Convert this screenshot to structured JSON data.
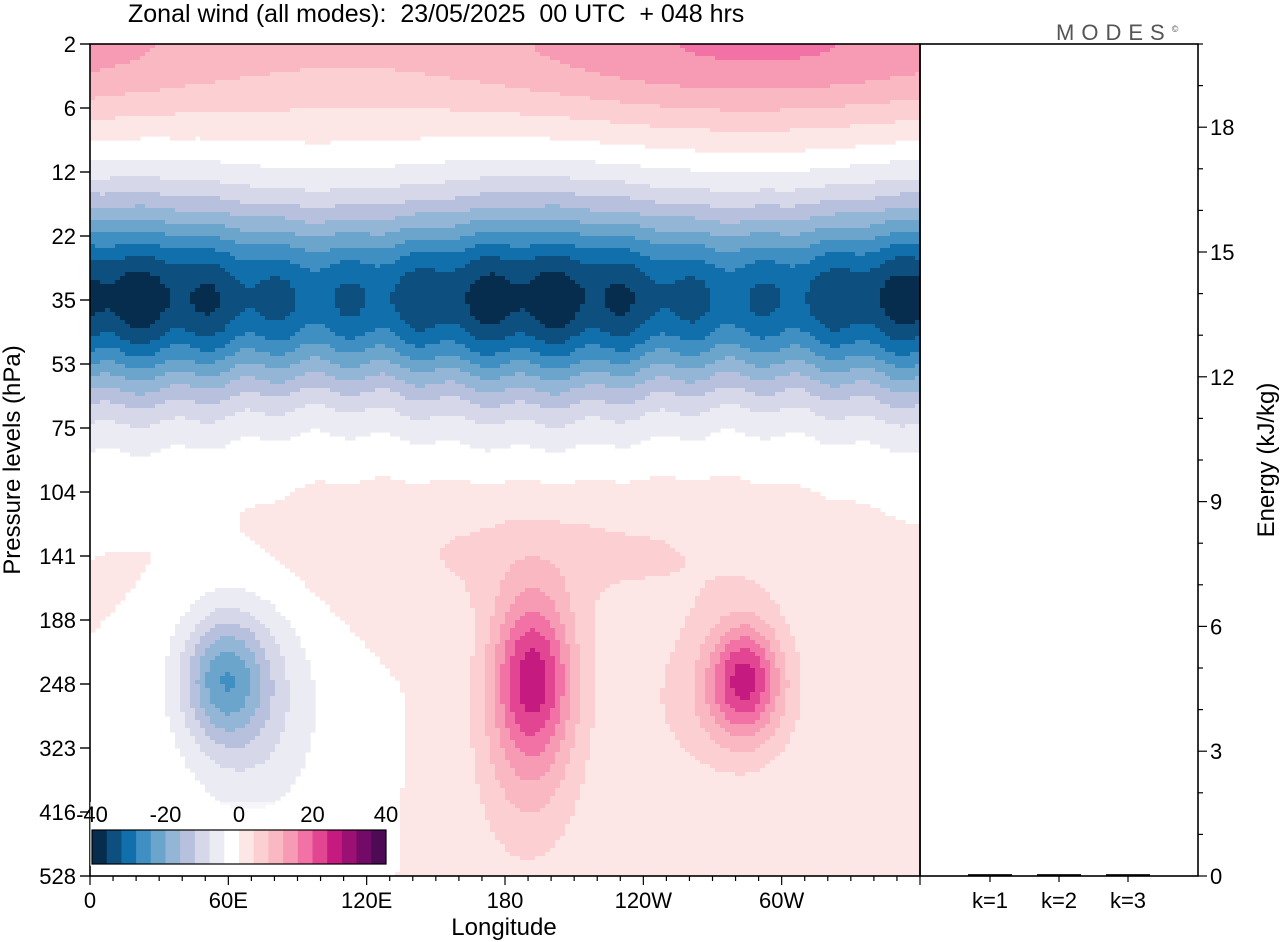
{
  "title": "Zonal wind (all modes):  23/05/2025  00 UTC  + 048 hrs",
  "brand": {
    "name": "MODES",
    "mark": "©"
  },
  "chart_data": [
    {
      "type": "heatmap",
      "title": "Zonal wind (all modes):  23/05/2025  00 UTC  + 048 hrs",
      "xlabel": "Longitude",
      "ylabel": "Pressure levels (hPa)",
      "x_ticks": [
        "0",
        "60E",
        "120E",
        "180",
        "120W",
        "60W"
      ],
      "x_tick_degrees": [
        0,
        60,
        120,
        180,
        240,
        300
      ],
      "xlim": [
        0,
        360
      ],
      "y_ticks": [
        2,
        6,
        12,
        22,
        35,
        53,
        75,
        104,
        141,
        188,
        248,
        323,
        416,
        528
      ],
      "y_order": "top-to-bottom",
      "colorbar": {
        "tick_labels": [
          "-40",
          "-20",
          "0",
          "20",
          "40"
        ],
        "range": [
          -40,
          40
        ],
        "colors": [
          "#062c4e",
          "#0d4f7e",
          "#1170ab",
          "#3f8fc2",
          "#6ba5cc",
          "#93b5d6",
          "#b7c1de",
          "#d6d8ea",
          "#ebebf4",
          "#ffffff",
          "#fde6e6",
          "#fcd0d3",
          "#fab9c2",
          "#f79bb5",
          "#f272a6",
          "#e24591",
          "#c51b80",
          "#9c0f73",
          "#740a68",
          "#4d0a55"
        ],
        "placement": "bottom-left"
      },
      "field_summary": [
        {
          "region": "stratospheric easterly band",
          "levels_hPa": [
            6,
            35
          ],
          "longitudes": "all",
          "value": -30,
          "peak": -40
        },
        {
          "region": "upper westerlies",
          "levels_hPa": [
            2,
            5
          ],
          "longitudes": "all",
          "value": 10,
          "peak": 25
        },
        {
          "region": "easterly lobe",
          "levels_hPa": [
            75,
            323
          ],
          "longitudes": "40E-100E",
          "value": -15,
          "peak": -20
        },
        {
          "region": "westerly jet",
          "levels_hPa": [
            75,
            323
          ],
          "longitudes": "170E-160W",
          "value": 20,
          "peak": 25
        },
        {
          "region": "westerly jet",
          "levels_hPa": [
            104,
            188
          ],
          "longitudes": "90W-50W",
          "value": 15,
          "peak": 30
        },
        {
          "region": "near-zero background",
          "levels_hPa": [
            141,
            528
          ],
          "longitudes": "all",
          "value": 0
        }
      ],
      "grid": false
    },
    {
      "type": "bar",
      "ylabel": "Energy (kJ/kg)",
      "categories": [
        "k=1",
        "k=2",
        "k=3"
      ],
      "values": [
        0.02,
        0.02,
        0.02
      ],
      "ylim": [
        0,
        20
      ],
      "y_ticks": [
        0,
        3,
        6,
        9,
        12,
        15,
        18
      ],
      "y_axis_side": "right"
    }
  ]
}
